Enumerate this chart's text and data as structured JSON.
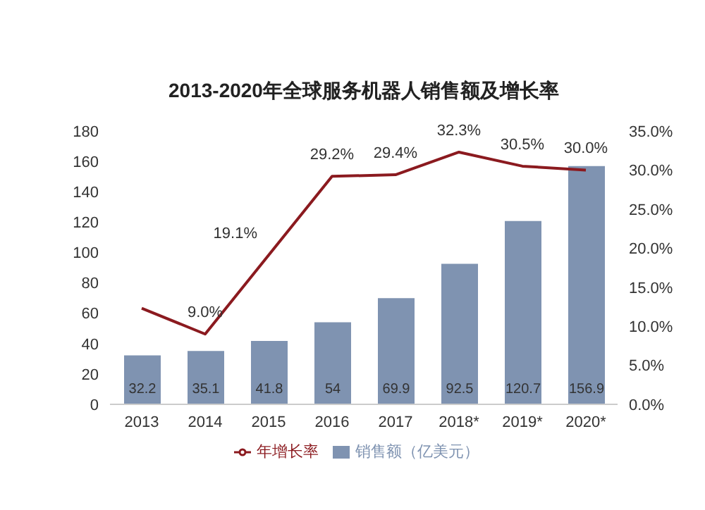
{
  "chart_data": {
    "type": "bar",
    "title": "2013-2020年全球服务机器人销售额及增长率",
    "categories": [
      "2013",
      "2014",
      "2015",
      "2016",
      "2017",
      "2018*",
      "2019*",
      "2020*"
    ],
    "series": [
      {
        "name": "销售额（亿美元）",
        "color": "#7f93b1",
        "values": [
          32.2,
          35.1,
          41.8,
          54,
          69.9,
          92.5,
          120.7,
          156.9
        ],
        "data_labels": true
      },
      {
        "name": "年增长率",
        "type": "line",
        "axis": "y2",
        "color": "#8b1a1f",
        "values": [
          12.3,
          9.0,
          19.1,
          29.2,
          29.4,
          32.3,
          30.5,
          30.0
        ],
        "value_labels": [
          null,
          "9.0%",
          "19.1%",
          "29.2%",
          "29.4%",
          "32.3%",
          "30.5%",
          "30.0%"
        ]
      }
    ],
    "ylim": [
      0,
      180
    ],
    "yticks": [
      0,
      20,
      40,
      60,
      80,
      100,
      120,
      140,
      160,
      180
    ],
    "y2lim": [
      0,
      35
    ],
    "y2ticks": [
      {
        "value": 0,
        "label": "0.0%"
      },
      {
        "value": 5,
        "label": "5.0%"
      },
      {
        "value": 10,
        "label": "10.0%"
      },
      {
        "value": 15,
        "label": "15.0%"
      },
      {
        "value": 20,
        "label": "20.0%"
      },
      {
        "value": 25,
        "label": "25.0%"
      },
      {
        "value": 30,
        "label": "30.0%"
      },
      {
        "value": 35,
        "label": "35.0%"
      }
    ],
    "legend": "bottom",
    "marker": "none"
  }
}
